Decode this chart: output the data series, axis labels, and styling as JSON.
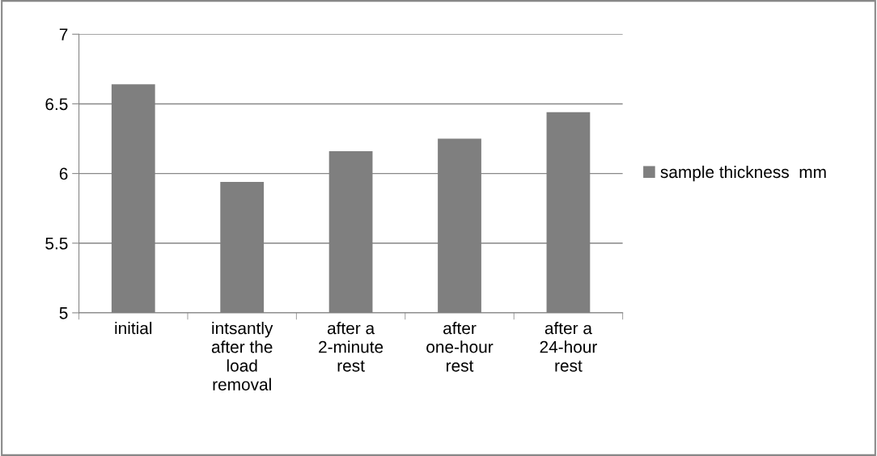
{
  "chart_data": {
    "type": "bar",
    "categories": [
      "initial",
      "intsantly after the load removal",
      "after a 2-minute rest",
      "after one-hour rest",
      "after a 24-hour rest"
    ],
    "series": [
      {
        "name": "sample thickness  mm",
        "color": "#7f7f7f",
        "values": [
          6.64,
          5.94,
          6.16,
          6.25,
          6.44
        ]
      }
    ],
    "ylim": [
      5,
      7
    ],
    "yticks": [
      5,
      5.5,
      6,
      6.5,
      7
    ],
    "grid": "y",
    "legend": "right"
  }
}
